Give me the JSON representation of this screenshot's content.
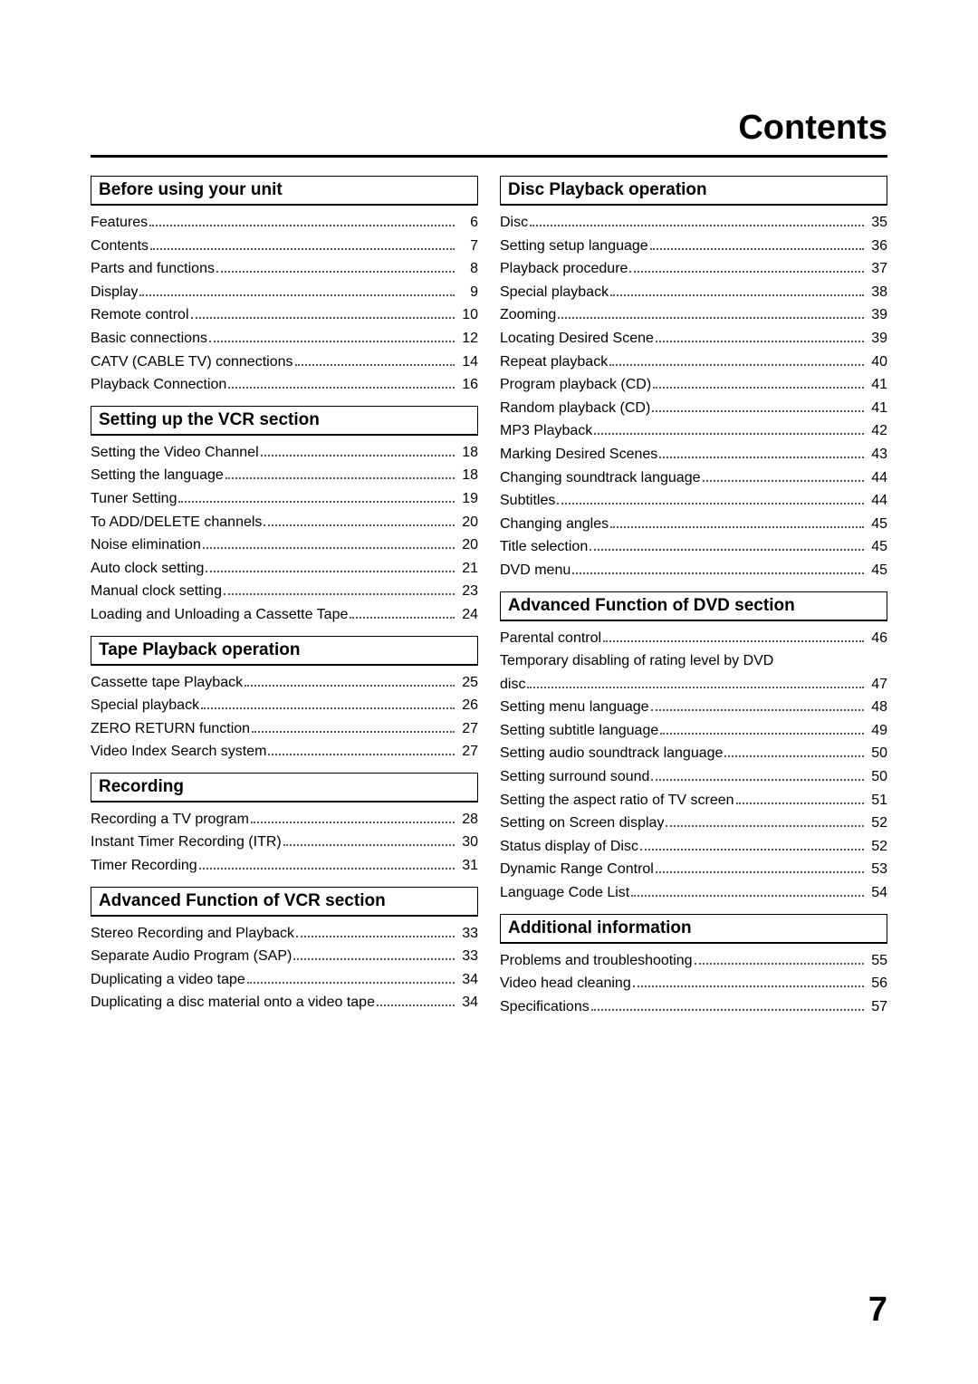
{
  "page_title": "Contents",
  "page_number": "7",
  "left_sections": [
    {
      "title": "Before using your unit",
      "entries": [
        {
          "label": "Features",
          "page": "6"
        },
        {
          "label": "Contents",
          "page": "7"
        },
        {
          "label": "Parts and functions",
          "page": "8"
        },
        {
          "label": "Display",
          "page": "9"
        },
        {
          "label": "Remote control",
          "page": "10"
        },
        {
          "label": "Basic connections",
          "page": "12"
        },
        {
          "label": "CATV (CABLE TV) connections",
          "page": "14"
        },
        {
          "label": "Playback Connection",
          "page": "16"
        }
      ]
    },
    {
      "title": "Setting up the VCR section",
      "entries": [
        {
          "label": "Setting the Video Channel",
          "page": "18"
        },
        {
          "label": "Setting the language",
          "page": "18"
        },
        {
          "label": "Tuner Setting",
          "page": "19"
        },
        {
          "label": "To ADD/DELETE channels",
          "page": "20"
        },
        {
          "label": "Noise elimination",
          "page": "20"
        },
        {
          "label": "Auto clock setting",
          "page": "21"
        },
        {
          "label": "Manual clock setting",
          "page": "23"
        },
        {
          "label": "Loading and Unloading a Cassette Tape",
          "page": "24"
        }
      ]
    },
    {
      "title": "Tape Playback operation",
      "entries": [
        {
          "label": "Cassette tape Playback",
          "page": "25"
        },
        {
          "label": "Special playback",
          "page": "26"
        },
        {
          "label": "ZERO RETURN function",
          "page": "27"
        },
        {
          "label": "Video Index Search system",
          "page": "27"
        }
      ]
    },
    {
      "title": "Recording",
      "entries": [
        {
          "label": "Recording a TV program",
          "page": "28"
        },
        {
          "label": "Instant Timer Recording (ITR)",
          "page": "30"
        },
        {
          "label": "Timer Recording",
          "page": "31"
        }
      ]
    },
    {
      "title": "Advanced Function of VCR section",
      "entries": [
        {
          "label": "Stereo Recording and Playback",
          "page": "33"
        },
        {
          "label": "Separate Audio Program (SAP)",
          "page": "33"
        },
        {
          "label": "Duplicating a video tape",
          "page": "34"
        },
        {
          "label": "Duplicating a disc material onto a video tape",
          "page": "34"
        }
      ]
    }
  ],
  "right_sections": [
    {
      "title": "Disc Playback operation",
      "entries": [
        {
          "label": "Disc",
          "page": "35"
        },
        {
          "label": "Setting setup language",
          "page": "36"
        },
        {
          "label": "Playback procedure",
          "page": "37"
        },
        {
          "label": "Special playback",
          "page": "38"
        },
        {
          "label": "Zooming",
          "page": "39"
        },
        {
          "label": "Locating Desired Scene",
          "page": "39"
        },
        {
          "label": "Repeat playback",
          "page": "40"
        },
        {
          "label": "Program playback (CD)",
          "page": "41"
        },
        {
          "label": "Random playback (CD)",
          "page": "41"
        },
        {
          "label": "MP3 Playback",
          "page": "42"
        },
        {
          "label": "Marking Desired Scenes",
          "page": "43"
        },
        {
          "label": "Changing soundtrack language",
          "page": "44"
        },
        {
          "label": "Subtitles",
          "page": "44"
        },
        {
          "label": "Changing angles",
          "page": "45"
        },
        {
          "label": "Title selection",
          "page": "45"
        },
        {
          "label": "DVD menu",
          "page": "45"
        }
      ]
    },
    {
      "title": "Advanced Function of DVD section",
      "entries": [
        {
          "label": "Parental control",
          "page": "46"
        },
        {
          "label_line1": "Temporary disabling of rating level by DVD",
          "label_line2": "disc",
          "page": "47",
          "multiline": true
        },
        {
          "label": "Setting menu language",
          "page": "48"
        },
        {
          "label": "Setting subtitle language",
          "page": "49"
        },
        {
          "label": "Setting audio soundtrack language",
          "page": "50"
        },
        {
          "label": "Setting surround sound",
          "page": "50"
        },
        {
          "label": "Setting the aspect ratio of TV screen",
          "page": "51"
        },
        {
          "label": "Setting on Screen display",
          "page": "52"
        },
        {
          "label": "Status display of Disc",
          "page": "52"
        },
        {
          "label": "Dynamic Range Control",
          "page": "53"
        },
        {
          "label": "Language Code List",
          "page": "54"
        }
      ]
    },
    {
      "title": "Additional information",
      "entries": [
        {
          "label": "Problems and troubleshooting",
          "page": "55"
        },
        {
          "label": "Video head cleaning",
          "page": "56"
        },
        {
          "label": "Specifications",
          "page": "57"
        }
      ]
    }
  ]
}
